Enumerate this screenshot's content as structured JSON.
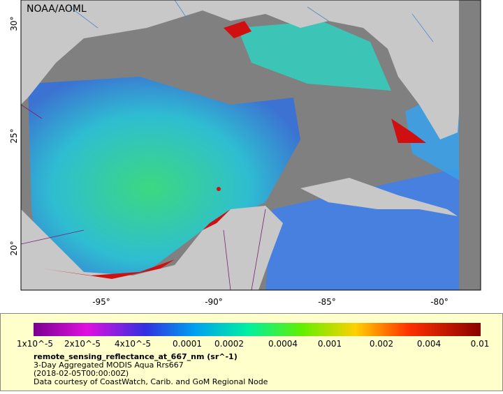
{
  "map": {
    "credit": "NOAA/AOML",
    "lat_labels": [
      "30°",
      "25°",
      "20°"
    ],
    "lon_labels": [
      "-95°",
      "-90°",
      "-85°",
      "-80°"
    ]
  },
  "legend": {
    "color_labels": [
      "1x10^-5",
      "2x10^-5",
      "4x10^-5",
      "0.0001",
      "0.0002",
      "0.0004",
      "0.001",
      "0.002",
      "0.004",
      "0.01"
    ],
    "title": "remote_sensing_reflectance_at_667_nm (sr^-1)",
    "lines": [
      "3-Day Aggregated MODIS Aqua Rrs667",
      "(2018-02-05T00:00:00Z)",
      "Data courtesy of CoastWatch, Carib. and GoM Regional Node"
    ]
  }
}
